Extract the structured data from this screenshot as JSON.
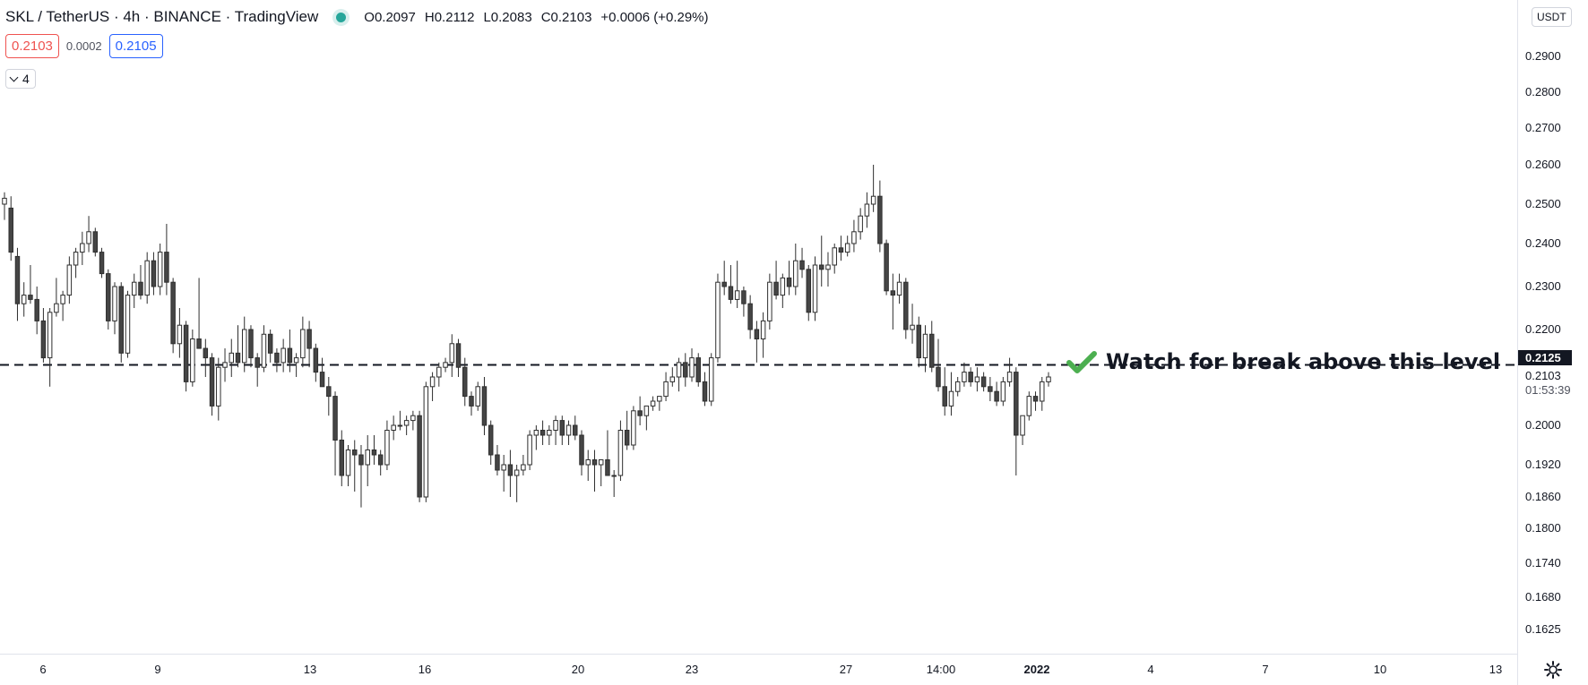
{
  "header": {
    "symbol": "SKL / TetherUS · 4h · BINANCE · TradingView",
    "ohlc": {
      "o_label": "O",
      "o": "0.2097",
      "h_label": "H",
      "h": "0.2112",
      "l_label": "L",
      "l": "0.2083",
      "c_label": "C",
      "c": "0.2103",
      "change": "+0.0006 (+0.29%)"
    },
    "bid": "0.2103",
    "spread": "0.0002",
    "ask": "0.2105",
    "indicators_count": "4",
    "currency": "USDT"
  },
  "colors": {
    "up": "#ffffff",
    "down": "#454545",
    "wick": "#2e2e2e",
    "check": "#4caf50",
    "bid": "#ef5350",
    "ask": "#2962ff"
  },
  "annotation": {
    "text": "Watch for break above this level",
    "icon": "check-mark-icon"
  },
  "chart_data": {
    "type": "candlestick",
    "y_ticks": [
      "0.2900",
      "0.2800",
      "0.2700",
      "0.2600",
      "0.2500",
      "0.2400",
      "0.2300",
      "0.2200",
      "0.2000",
      "0.1920",
      "0.1860",
      "0.1800",
      "0.1740",
      "0.1680",
      "0.1625"
    ],
    "x_ticks": [
      {
        "label": "6",
        "bold": false
      },
      {
        "label": "9",
        "bold": false
      },
      {
        "label": "13",
        "bold": false
      },
      {
        "label": "16",
        "bold": false
      },
      {
        "label": "20",
        "bold": false
      },
      {
        "label": "23",
        "bold": false
      },
      {
        "label": "27",
        "bold": false
      },
      {
        "label": "14:00",
        "bold": false
      },
      {
        "label": "2022",
        "bold": true
      },
      {
        "label": "4",
        "bold": false
      },
      {
        "label": "7",
        "bold": false
      },
      {
        "label": "10",
        "bold": false
      },
      {
        "label": "13",
        "bold": false
      }
    ],
    "level": {
      "value": "0.2125",
      "style": "dashed"
    },
    "last_price": "0.2103",
    "countdown": "01:53:39",
    "candles": [
      [
        0.25,
        0.253,
        0.246,
        0.2515
      ],
      [
        0.249,
        0.252,
        0.236,
        0.238
      ],
      [
        0.237,
        0.239,
        0.222,
        0.226
      ],
      [
        0.226,
        0.231,
        0.223,
        0.228
      ],
      [
        0.228,
        0.235,
        0.226,
        0.227
      ],
      [
        0.227,
        0.23,
        0.219,
        0.222
      ],
      [
        0.222,
        0.225,
        0.213,
        0.214
      ],
      [
        0.214,
        0.225,
        0.208,
        0.224
      ],
      [
        0.224,
        0.232,
        0.223,
        0.226
      ],
      [
        0.226,
        0.229,
        0.222,
        0.228
      ],
      [
        0.228,
        0.237,
        0.226,
        0.235
      ],
      [
        0.235,
        0.239,
        0.232,
        0.238
      ],
      [
        0.238,
        0.243,
        0.235,
        0.24
      ],
      [
        0.24,
        0.247,
        0.238,
        0.243
      ],
      [
        0.243,
        0.244,
        0.237,
        0.238
      ],
      [
        0.238,
        0.239,
        0.232,
        0.233
      ],
      [
        0.233,
        0.234,
        0.22,
        0.222
      ],
      [
        0.222,
        0.231,
        0.219,
        0.23
      ],
      [
        0.23,
        0.231,
        0.213,
        0.215
      ],
      [
        0.215,
        0.229,
        0.214,
        0.228
      ],
      [
        0.228,
        0.233,
        0.225,
        0.231
      ],
      [
        0.231,
        0.235,
        0.227,
        0.228
      ],
      [
        0.228,
        0.238,
        0.226,
        0.236
      ],
      [
        0.236,
        0.238,
        0.228,
        0.23
      ],
      [
        0.23,
        0.24,
        0.228,
        0.238
      ],
      [
        0.238,
        0.245,
        0.228,
        0.231
      ],
      [
        0.231,
        0.232,
        0.215,
        0.217
      ],
      [
        0.217,
        0.225,
        0.214,
        0.221
      ],
      [
        0.221,
        0.222,
        0.207,
        0.209
      ],
      [
        0.209,
        0.22,
        0.208,
        0.218
      ],
      [
        0.218,
        0.232,
        0.216,
        0.216
      ],
      [
        0.216,
        0.218,
        0.21,
        0.214
      ],
      [
        0.214,
        0.215,
        0.202,
        0.204
      ],
      [
        0.204,
        0.214,
        0.201,
        0.212
      ],
      [
        0.212,
        0.216,
        0.209,
        0.213
      ],
      [
        0.213,
        0.218,
        0.21,
        0.215
      ],
      [
        0.215,
        0.221,
        0.212,
        0.213
      ],
      [
        0.213,
        0.223,
        0.211,
        0.22
      ],
      [
        0.22,
        0.221,
        0.212,
        0.214
      ],
      [
        0.214,
        0.215,
        0.208,
        0.212
      ],
      [
        0.212,
        0.221,
        0.211,
        0.219
      ],
      [
        0.219,
        0.22,
        0.213,
        0.215
      ],
      [
        0.215,
        0.216,
        0.211,
        0.213
      ],
      [
        0.213,
        0.218,
        0.211,
        0.216
      ],
      [
        0.216,
        0.22,
        0.211,
        0.213
      ],
      [
        0.213,
        0.215,
        0.21,
        0.214
      ],
      [
        0.214,
        0.223,
        0.212,
        0.22
      ],
      [
        0.22,
        0.222,
        0.212,
        0.216
      ],
      [
        0.216,
        0.217,
        0.209,
        0.211
      ],
      [
        0.211,
        0.214,
        0.208,
        0.208
      ],
      [
        0.208,
        0.21,
        0.202,
        0.206
      ],
      [
        0.206,
        0.207,
        0.19,
        0.197
      ],
      [
        0.197,
        0.199,
        0.188,
        0.19
      ],
      [
        0.19,
        0.196,
        0.188,
        0.195
      ],
      [
        0.195,
        0.197,
        0.187,
        0.194
      ],
      [
        0.194,
        0.196,
        0.184,
        0.192
      ],
      [
        0.192,
        0.198,
        0.188,
        0.195
      ],
      [
        0.195,
        0.198,
        0.192,
        0.194
      ],
      [
        0.194,
        0.195,
        0.19,
        0.192
      ],
      [
        0.192,
        0.201,
        0.191,
        0.199
      ],
      [
        0.199,
        0.202,
        0.197,
        0.2
      ],
      [
        0.2,
        0.203,
        0.199,
        0.2
      ],
      [
        0.2,
        0.202,
        0.198,
        0.201
      ],
      [
        0.201,
        0.203,
        0.199,
        0.202
      ],
      [
        0.202,
        0.203,
        0.185,
        0.186
      ],
      [
        0.186,
        0.209,
        0.185,
        0.208
      ],
      [
        0.208,
        0.211,
        0.205,
        0.21
      ],
      [
        0.21,
        0.213,
        0.208,
        0.212
      ],
      [
        0.212,
        0.214,
        0.211,
        0.213
      ],
      [
        0.213,
        0.219,
        0.21,
        0.217
      ],
      [
        0.217,
        0.218,
        0.21,
        0.212
      ],
      [
        0.212,
        0.214,
        0.204,
        0.206
      ],
      [
        0.206,
        0.207,
        0.202,
        0.204
      ],
      [
        0.204,
        0.209,
        0.203,
        0.208
      ],
      [
        0.208,
        0.21,
        0.198,
        0.2
      ],
      [
        0.2,
        0.201,
        0.192,
        0.194
      ],
      [
        0.194,
        0.196,
        0.19,
        0.191
      ],
      [
        0.191,
        0.194,
        0.187,
        0.192
      ],
      [
        0.192,
        0.195,
        0.186,
        0.19
      ],
      [
        0.19,
        0.192,
        0.185,
        0.191
      ],
      [
        0.191,
        0.194,
        0.19,
        0.192
      ],
      [
        0.192,
        0.199,
        0.191,
        0.198
      ],
      [
        0.198,
        0.2,
        0.195,
        0.199
      ],
      [
        0.199,
        0.201,
        0.196,
        0.198
      ],
      [
        0.198,
        0.2,
        0.196,
        0.199
      ],
      [
        0.199,
        0.202,
        0.196,
        0.201
      ],
      [
        0.201,
        0.202,
        0.196,
        0.198
      ],
      [
        0.198,
        0.201,
        0.196,
        0.2
      ],
      [
        0.2,
        0.202,
        0.197,
        0.198
      ],
      [
        0.198,
        0.199,
        0.19,
        0.192
      ],
      [
        0.192,
        0.195,
        0.189,
        0.193
      ],
      [
        0.193,
        0.195,
        0.187,
        0.192
      ],
      [
        0.192,
        0.193,
        0.188,
        0.193
      ],
      [
        0.193,
        0.199,
        0.19,
        0.19
      ],
      [
        0.19,
        0.191,
        0.186,
        0.19
      ],
      [
        0.19,
        0.201,
        0.189,
        0.199
      ],
      [
        0.199,
        0.203,
        0.195,
        0.196
      ],
      [
        0.196,
        0.204,
        0.195,
        0.203
      ],
      [
        0.203,
        0.206,
        0.2,
        0.202
      ],
      [
        0.202,
        0.204,
        0.199,
        0.204
      ],
      [
        0.204,
        0.206,
        0.203,
        0.205
      ],
      [
        0.205,
        0.206,
        0.203,
        0.206
      ],
      [
        0.206,
        0.211,
        0.205,
        0.209
      ],
      [
        0.209,
        0.212,
        0.208,
        0.21
      ],
      [
        0.21,
        0.214,
        0.207,
        0.213
      ],
      [
        0.213,
        0.215,
        0.208,
        0.21
      ],
      [
        0.21,
        0.216,
        0.209,
        0.214
      ],
      [
        0.214,
        0.215,
        0.208,
        0.209
      ],
      [
        0.209,
        0.211,
        0.204,
        0.205
      ],
      [
        0.205,
        0.215,
        0.204,
        0.214
      ],
      [
        0.214,
        0.233,
        0.213,
        0.231
      ],
      [
        0.231,
        0.236,
        0.228,
        0.23
      ],
      [
        0.23,
        0.235,
        0.226,
        0.227
      ],
      [
        0.227,
        0.236,
        0.225,
        0.229
      ],
      [
        0.229,
        0.23,
        0.223,
        0.226
      ],
      [
        0.226,
        0.228,
        0.218,
        0.22
      ],
      [
        0.22,
        0.222,
        0.213,
        0.218
      ],
      [
        0.218,
        0.224,
        0.214,
        0.222
      ],
      [
        0.222,
        0.233,
        0.22,
        0.231
      ],
      [
        0.231,
        0.236,
        0.227,
        0.228
      ],
      [
        0.228,
        0.233,
        0.225,
        0.232
      ],
      [
        0.232,
        0.236,
        0.228,
        0.23
      ],
      [
        0.23,
        0.24,
        0.228,
        0.236
      ],
      [
        0.236,
        0.239,
        0.232,
        0.234
      ],
      [
        0.234,
        0.235,
        0.222,
        0.224
      ],
      [
        0.224,
        0.237,
        0.222,
        0.235
      ],
      [
        0.235,
        0.242,
        0.23,
        0.234
      ],
      [
        0.234,
        0.238,
        0.23,
        0.235
      ],
      [
        0.235,
        0.24,
        0.233,
        0.239
      ],
      [
        0.239,
        0.242,
        0.236,
        0.238
      ],
      [
        0.238,
        0.242,
        0.237,
        0.24
      ],
      [
        0.24,
        0.246,
        0.238,
        0.243
      ],
      [
        0.243,
        0.249,
        0.241,
        0.247
      ],
      [
        0.247,
        0.253,
        0.244,
        0.25
      ],
      [
        0.25,
        0.26,
        0.248,
        0.252
      ],
      [
        0.252,
        0.256,
        0.238,
        0.24
      ],
      [
        0.24,
        0.241,
        0.228,
        0.229
      ],
      [
        0.229,
        0.233,
        0.22,
        0.228
      ],
      [
        0.228,
        0.233,
        0.226,
        0.231
      ],
      [
        0.231,
        0.232,
        0.218,
        0.22
      ],
      [
        0.22,
        0.226,
        0.217,
        0.221
      ],
      [
        0.221,
        0.223,
        0.212,
        0.214
      ],
      [
        0.214,
        0.221,
        0.211,
        0.219
      ],
      [
        0.219,
        0.222,
        0.211,
        0.212
      ],
      [
        0.212,
        0.218,
        0.207,
        0.208
      ],
      [
        0.208,
        0.212,
        0.202,
        0.204
      ],
      [
        0.204,
        0.211,
        0.202,
        0.207
      ],
      [
        0.207,
        0.21,
        0.206,
        0.209
      ],
      [
        0.209,
        0.213,
        0.208,
        0.211
      ],
      [
        0.211,
        0.212,
        0.208,
        0.209
      ],
      [
        0.209,
        0.212,
        0.207,
        0.21
      ],
      [
        0.21,
        0.211,
        0.207,
        0.208
      ],
      [
        0.208,
        0.21,
        0.205,
        0.207
      ],
      [
        0.207,
        0.209,
        0.204,
        0.205
      ],
      [
        0.205,
        0.21,
        0.204,
        0.209
      ],
      [
        0.209,
        0.214,
        0.208,
        0.211
      ],
      [
        0.211,
        0.212,
        0.19,
        0.198
      ],
      [
        0.198,
        0.202,
        0.196,
        0.202
      ],
      [
        0.202,
        0.207,
        0.201,
        0.206
      ],
      [
        0.206,
        0.207,
        0.203,
        0.205
      ],
      [
        0.205,
        0.21,
        0.203,
        0.209
      ],
      [
        0.209,
        0.211,
        0.208,
        0.21
      ]
    ]
  }
}
